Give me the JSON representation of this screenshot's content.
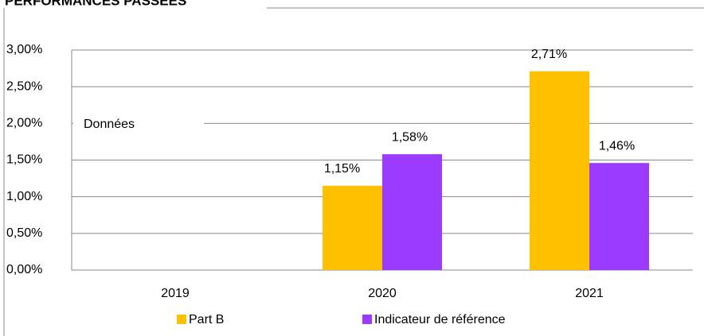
{
  "chart_data": {
    "type": "bar",
    "title": "PERFORMANCES PASSÉES",
    "annotation": "Données",
    "categories": [
      "2019",
      "2020",
      "2021"
    ],
    "series": [
      {
        "name": "Part B",
        "color": "#ffc000",
        "values": [
          null,
          1.15,
          2.71
        ],
        "value_labels": [
          null,
          "1,15%",
          "2,71%"
        ]
      },
      {
        "name": "Indicateur de référence",
        "color": "#9b3bff",
        "values": [
          null,
          1.58,
          1.46
        ],
        "value_labels": [
          null,
          "1,58%",
          "1,46%"
        ]
      }
    ],
    "ylim": [
      0,
      3
    ],
    "yticks": [
      {
        "value": 0,
        "label": "0,00%"
      },
      {
        "value": 0.5,
        "label": "0,50%"
      },
      {
        "value": 1,
        "label": "1,00%"
      },
      {
        "value": 1.5,
        "label": "1,50%"
      },
      {
        "value": 2,
        "label": "2,00%"
      },
      {
        "value": 2.5,
        "label": "2,50%"
      },
      {
        "value": 3,
        "label": "3,00%"
      }
    ],
    "grid": true,
    "legend": "bottom"
  }
}
